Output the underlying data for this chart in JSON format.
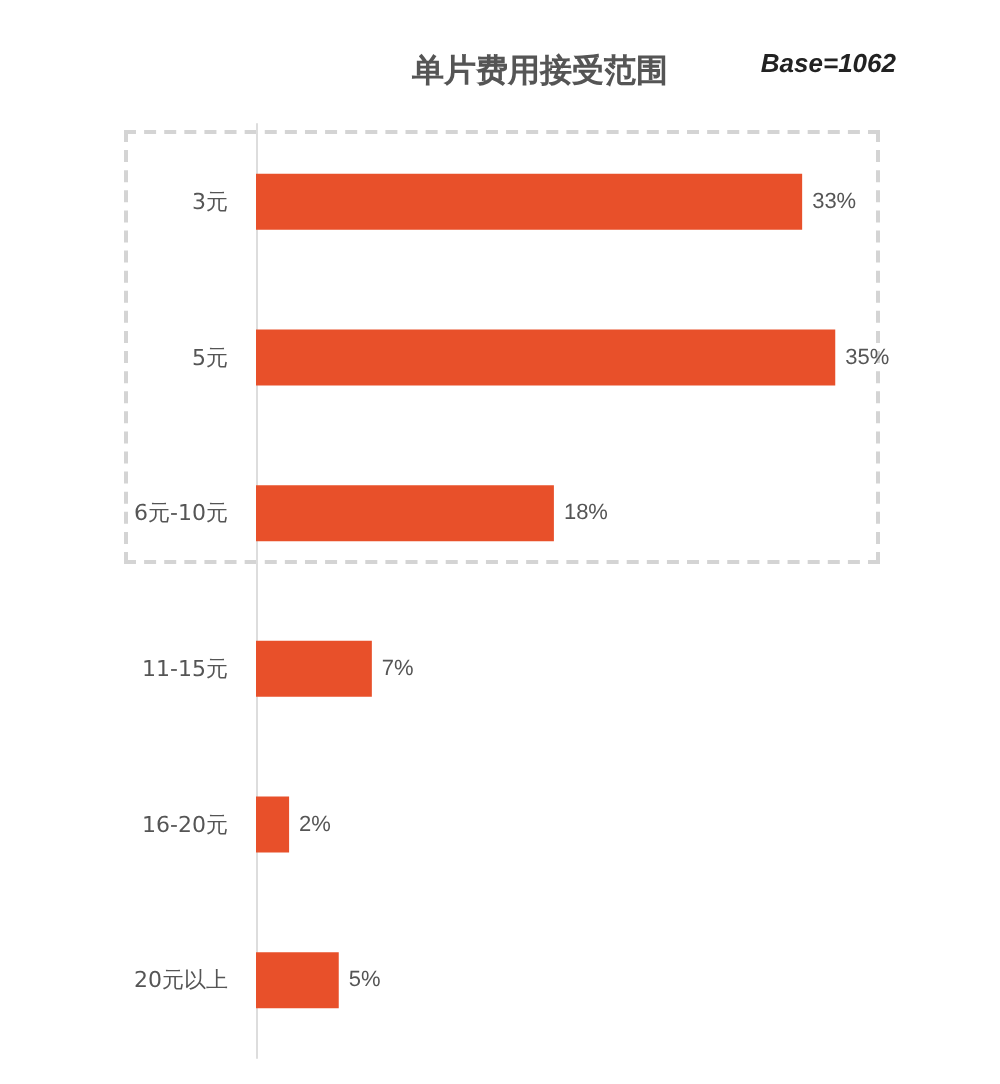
{
  "chart_data": {
    "type": "bar",
    "orientation": "horizontal",
    "title": "单片费用接受范围",
    "annotations": [
      "Base=1062"
    ],
    "categories": [
      "3元",
      "5元",
      "6元-10元",
      "11-15元",
      "16-20元",
      "20元以上"
    ],
    "values": [
      33,
      35,
      18,
      7,
      2,
      5
    ],
    "value_labels": [
      "33%",
      "35%",
      "18%",
      "7%",
      "2%",
      "5%"
    ],
    "color": "#e8502a"
  }
}
